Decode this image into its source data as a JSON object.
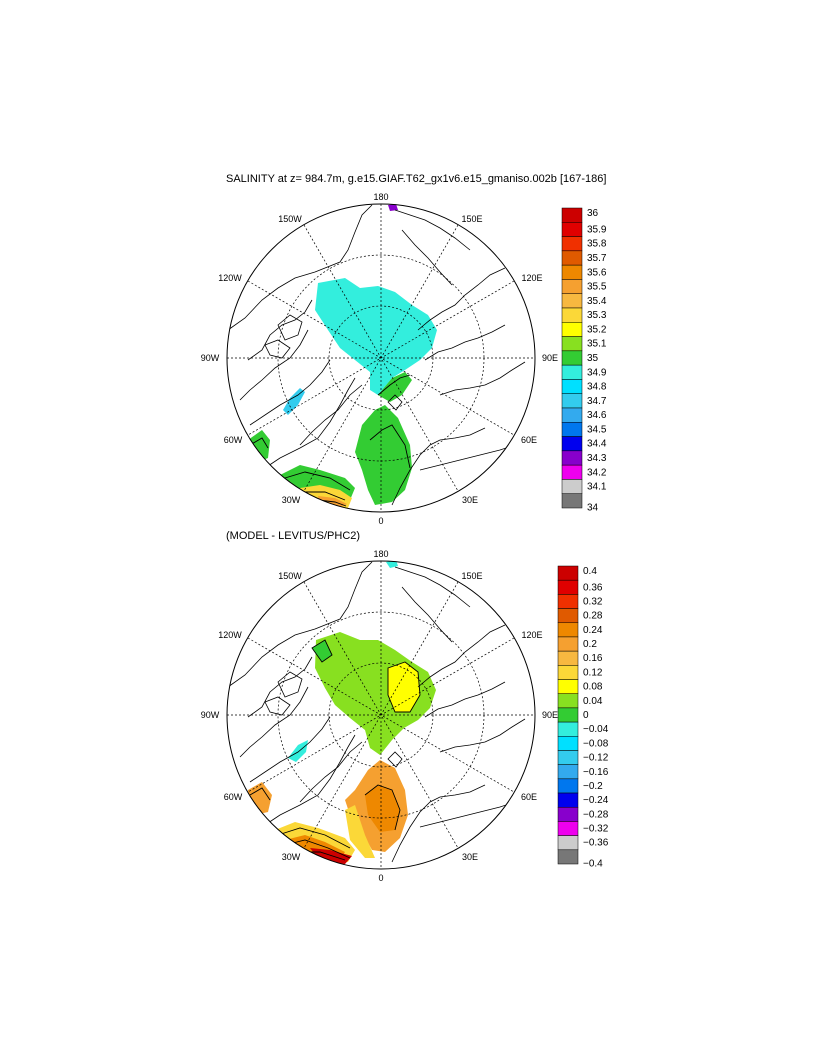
{
  "top": {
    "title": "SALINITY at z= 984.7m, g.e15.GIAF.T62_gx1v6.e15_gmaniso.002b [167-186]",
    "lon_labels": {
      "n180": "180",
      "n150w": "150W",
      "n150e": "150E",
      "n120w": "120W",
      "n120e": "120E",
      "n90w": "90W",
      "n90e": "90E",
      "n60w": "60W",
      "n60e": "60E",
      "n30w": "30W",
      "n30e": "30E",
      "n0": "0"
    },
    "colorbar": {
      "labels": [
        "36",
        "35.9",
        "35.8",
        "35.7",
        "35.6",
        "35.5",
        "35.4",
        "35.3",
        "35.2",
        "35.1",
        "35",
        "34.9",
        "34.8",
        "34.7",
        "34.6",
        "34.5",
        "34.4",
        "34.3",
        "34.2",
        "34.1",
        "34"
      ],
      "colors": [
        "#cc0000",
        "#e00000",
        "#f03000",
        "#e05a00",
        "#ee8800",
        "#f5a030",
        "#f7b840",
        "#fbd838",
        "#ffff00",
        "#88e020",
        "#33cc33",
        "#33eedd",
        "#00e0ff",
        "#33ccee",
        "#33aaee",
        "#0077ee",
        "#0000ee",
        "#8800cc",
        "#ee00ee",
        "#cccccc",
        "#777777"
      ]
    }
  },
  "bottom": {
    "title": "(MODEL - LEVITUS/PHC2)",
    "lon_labels": {
      "n180": "180",
      "n150w": "150W",
      "n150e": "150E",
      "n120w": "120W",
      "n120e": "120E",
      "n90w": "90W",
      "n90e": "90E",
      "n60w": "60W",
      "n60e": "60E",
      "n30w": "30W",
      "n30e": "30E",
      "n0": "0"
    },
    "colorbar": {
      "labels": [
        "0.4",
        "0.36",
        "0.32",
        "0.28",
        "0.24",
        "0.2",
        "0.16",
        "0.12",
        "0.08",
        "0.04",
        "0",
        "−0.04",
        "−0.08",
        "−0.12",
        "−0.16",
        "−0.2",
        "−0.24",
        "−0.28",
        "−0.32",
        "−0.36",
        "−0.4"
      ],
      "colors": [
        "#cc0000",
        "#e00000",
        "#f03000",
        "#e05a00",
        "#ee8800",
        "#f5a030",
        "#f7b840",
        "#fbd838",
        "#ffff00",
        "#88e020",
        "#33cc33",
        "#33eedd",
        "#00e0ff",
        "#33ccee",
        "#33aaee",
        "#0077ee",
        "#0000ee",
        "#8800cc",
        "#ee00ee",
        "#cccccc",
        "#777777"
      ]
    }
  }
}
